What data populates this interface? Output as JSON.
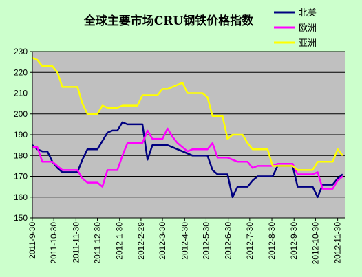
{
  "chart_data": {
    "type": "line",
    "title": "全球主要市场CRU钢铁价格指数",
    "xlabel": "",
    "ylabel": "",
    "ylim": [
      150,
      230
    ],
    "yticks": [
      150,
      160,
      170,
      180,
      190,
      200,
      210,
      220,
      230
    ],
    "x_tick_labels": [
      "2011-9-30",
      "2011-10-30",
      "2011-11-30",
      "2011-12-30",
      "2012-1-30",
      "2012-2-29",
      "2012-3-30",
      "2012-4-30",
      "2012-5-30",
      "2012-6-30",
      "2012-7-30",
      "2012-8-30",
      "2012-9-30",
      "2012-10-30",
      "2012-11-30"
    ],
    "x_range": [
      "2011-9-30",
      "2012-12-10"
    ],
    "grid": "horizontal",
    "legend_position": "top-right",
    "background": "#c0c0c0",
    "series": [
      {
        "name": "北美",
        "color": "#000080",
        "points": [
          [
            "2011-9-30",
            185
          ],
          [
            "2011-10-7",
            183
          ],
          [
            "2011-10-14",
            182
          ],
          [
            "2011-10-21",
            182
          ],
          [
            "2011-10-28",
            177
          ],
          [
            "2011-11-4",
            174
          ],
          [
            "2011-11-11",
            172
          ],
          [
            "2011-11-18",
            172
          ],
          [
            "2011-11-25",
            172
          ],
          [
            "2011-12-2",
            172
          ],
          [
            "2011-12-9",
            178
          ],
          [
            "2011-12-16",
            183
          ],
          [
            "2011-12-23",
            183
          ],
          [
            "2011-12-30",
            183
          ],
          [
            "2012-1-6",
            187
          ],
          [
            "2012-1-13",
            191
          ],
          [
            "2012-1-20",
            192
          ],
          [
            "2012-1-27",
            192
          ],
          [
            "2012-2-3",
            196
          ],
          [
            "2012-2-10",
            195
          ],
          [
            "2012-2-17",
            195
          ],
          [
            "2012-2-24",
            195
          ],
          [
            "2012-3-2",
            195
          ],
          [
            "2012-3-9",
            178
          ],
          [
            "2012-3-16",
            185
          ],
          [
            "2012-3-23",
            185
          ],
          [
            "2012-3-30",
            185
          ],
          [
            "2012-4-6",
            185
          ],
          [
            "2012-4-13",
            184
          ],
          [
            "2012-4-20",
            183
          ],
          [
            "2012-4-27",
            182
          ],
          [
            "2012-5-4",
            181
          ],
          [
            "2012-5-11",
            180
          ],
          [
            "2012-5-18",
            180
          ],
          [
            "2012-5-25",
            180
          ],
          [
            "2012-6-1",
            180
          ],
          [
            "2012-6-8",
            173
          ],
          [
            "2012-6-15",
            171
          ],
          [
            "2012-6-22",
            171
          ],
          [
            "2012-6-29",
            171
          ],
          [
            "2012-7-6",
            160
          ],
          [
            "2012-7-13",
            165
          ],
          [
            "2012-7-20",
            165
          ],
          [
            "2012-7-27",
            165
          ],
          [
            "2012-8-3",
            168
          ],
          [
            "2012-8-10",
            170
          ],
          [
            "2012-8-17",
            170
          ],
          [
            "2012-8-24",
            170
          ],
          [
            "2012-8-31",
            170
          ],
          [
            "2012-9-7",
            175
          ],
          [
            "2012-9-14",
            175
          ],
          [
            "2012-9-21",
            175
          ],
          [
            "2012-9-28",
            175
          ],
          [
            "2012-10-5",
            165
          ],
          [
            "2012-10-12",
            165
          ],
          [
            "2012-10-19",
            165
          ],
          [
            "2012-10-26",
            165
          ],
          [
            "2012-11-2",
            160
          ],
          [
            "2012-11-9",
            166
          ],
          [
            "2012-11-16",
            166
          ],
          [
            "2012-11-23",
            166
          ],
          [
            "2012-11-30",
            169
          ],
          [
            "2012-12-7",
            171
          ]
        ]
      },
      {
        "name": "欧洲",
        "color": "#ff00ff",
        "points": [
          [
            "2011-9-30",
            184
          ],
          [
            "2011-10-7",
            184
          ],
          [
            "2011-10-14",
            177
          ],
          [
            "2011-10-21",
            177
          ],
          [
            "2011-10-28",
            177
          ],
          [
            "2011-11-4",
            175
          ],
          [
            "2011-11-11",
            173
          ],
          [
            "2011-11-18",
            173
          ],
          [
            "2011-11-25",
            173
          ],
          [
            "2011-12-2",
            173
          ],
          [
            "2011-12-9",
            169
          ],
          [
            "2011-12-16",
            167
          ],
          [
            "2011-12-23",
            167
          ],
          [
            "2011-12-30",
            167
          ],
          [
            "2012-1-6",
            165
          ],
          [
            "2012-1-13",
            173
          ],
          [
            "2012-1-20",
            173
          ],
          [
            "2012-1-27",
            173
          ],
          [
            "2012-2-3",
            180
          ],
          [
            "2012-2-10",
            186
          ],
          [
            "2012-2-17",
            186
          ],
          [
            "2012-2-24",
            186
          ],
          [
            "2012-3-2",
            186
          ],
          [
            "2012-3-9",
            192
          ],
          [
            "2012-3-16",
            188
          ],
          [
            "2012-3-23",
            188
          ],
          [
            "2012-3-30",
            188
          ],
          [
            "2012-4-6",
            193
          ],
          [
            "2012-4-13",
            189
          ],
          [
            "2012-4-20",
            186
          ],
          [
            "2012-4-27",
            184
          ],
          [
            "2012-5-4",
            182
          ],
          [
            "2012-5-11",
            183
          ],
          [
            "2012-5-18",
            183
          ],
          [
            "2012-5-25",
            183
          ],
          [
            "2012-6-1",
            183
          ],
          [
            "2012-6-8",
            186
          ],
          [
            "2012-6-15",
            179
          ],
          [
            "2012-6-22",
            179
          ],
          [
            "2012-6-29",
            179
          ],
          [
            "2012-7-6",
            178
          ],
          [
            "2012-7-13",
            177
          ],
          [
            "2012-7-20",
            177
          ],
          [
            "2012-7-27",
            177
          ],
          [
            "2012-8-3",
            174
          ],
          [
            "2012-8-10",
            175
          ],
          [
            "2012-8-17",
            175
          ],
          [
            "2012-8-24",
            175
          ],
          [
            "2012-8-31",
            175
          ],
          [
            "2012-9-7",
            176
          ],
          [
            "2012-9-14",
            176
          ],
          [
            "2012-9-21",
            176
          ],
          [
            "2012-9-28",
            176
          ],
          [
            "2012-10-5",
            171
          ],
          [
            "2012-10-12",
            171
          ],
          [
            "2012-10-19",
            171
          ],
          [
            "2012-10-26",
            171
          ],
          [
            "2012-11-2",
            172
          ],
          [
            "2012-11-9",
            164
          ],
          [
            "2012-11-16",
            164
          ],
          [
            "2012-11-23",
            164
          ],
          [
            "2012-11-30",
            168
          ],
          [
            "2012-12-7",
            170
          ]
        ]
      },
      {
        "name": "亚洲",
        "color": "#ffff00",
        "points": [
          [
            "2011-9-30",
            227
          ],
          [
            "2011-10-7",
            226
          ],
          [
            "2011-10-14",
            223
          ],
          [
            "2011-10-21",
            223
          ],
          [
            "2011-10-28",
            223
          ],
          [
            "2011-11-4",
            220
          ],
          [
            "2011-11-11",
            213
          ],
          [
            "2011-11-18",
            213
          ],
          [
            "2011-11-25",
            213
          ],
          [
            "2011-12-2",
            213
          ],
          [
            "2011-12-9",
            205
          ],
          [
            "2011-12-16",
            200
          ],
          [
            "2011-12-23",
            200
          ],
          [
            "2011-12-30",
            200
          ],
          [
            "2012-1-6",
            204
          ],
          [
            "2012-1-13",
            203
          ],
          [
            "2012-1-20",
            203
          ],
          [
            "2012-1-27",
            203
          ],
          [
            "2012-2-3",
            204
          ],
          [
            "2012-2-10",
            204
          ],
          [
            "2012-2-17",
            204
          ],
          [
            "2012-2-24",
            204
          ],
          [
            "2012-3-2",
            209
          ],
          [
            "2012-3-9",
            209
          ],
          [
            "2012-3-16",
            209
          ],
          [
            "2012-3-23",
            209
          ],
          [
            "2012-3-30",
            212
          ],
          [
            "2012-4-6",
            212
          ],
          [
            "2012-4-13",
            213
          ],
          [
            "2012-4-20",
            214
          ],
          [
            "2012-4-27",
            215
          ],
          [
            "2012-5-4",
            210
          ],
          [
            "2012-5-11",
            210
          ],
          [
            "2012-5-18",
            210
          ],
          [
            "2012-5-25",
            210
          ],
          [
            "2012-6-1",
            208
          ],
          [
            "2012-6-8",
            199
          ],
          [
            "2012-6-15",
            199
          ],
          [
            "2012-6-22",
            199
          ],
          [
            "2012-6-29",
            188
          ],
          [
            "2012-7-6",
            190
          ],
          [
            "2012-7-13",
            190
          ],
          [
            "2012-7-20",
            190
          ],
          [
            "2012-7-27",
            186
          ],
          [
            "2012-8-3",
            183
          ],
          [
            "2012-8-10",
            183
          ],
          [
            "2012-8-17",
            183
          ],
          [
            "2012-8-24",
            183
          ],
          [
            "2012-8-31",
            175
          ],
          [
            "2012-9-7",
            175
          ],
          [
            "2012-9-14",
            175
          ],
          [
            "2012-9-21",
            175
          ],
          [
            "2012-9-28",
            175
          ],
          [
            "2012-10-5",
            173
          ],
          [
            "2012-10-12",
            173
          ],
          [
            "2012-10-19",
            173
          ],
          [
            "2012-10-26",
            173
          ],
          [
            "2012-11-2",
            177
          ],
          [
            "2012-11-9",
            177
          ],
          [
            "2012-11-16",
            177
          ],
          [
            "2012-11-23",
            177
          ],
          [
            "2012-11-30",
            183
          ],
          [
            "2012-12-7",
            180
          ]
        ]
      }
    ]
  }
}
